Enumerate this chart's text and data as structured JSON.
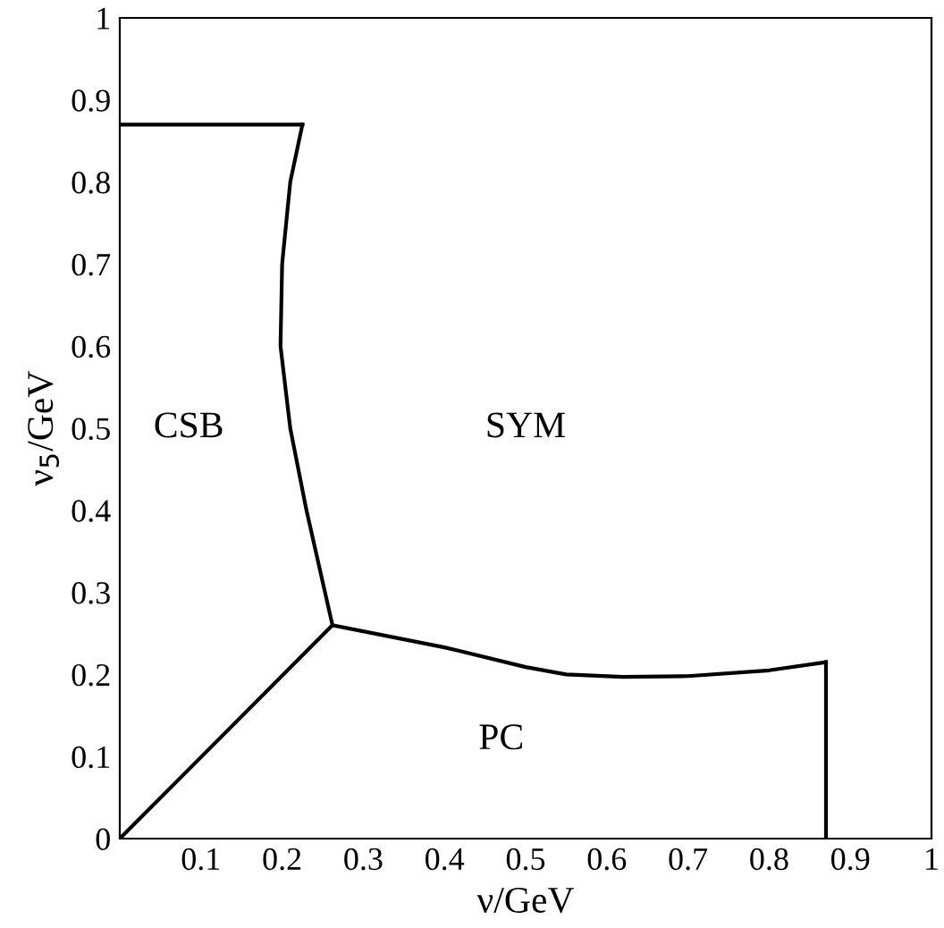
{
  "chart_data": {
    "type": "line",
    "xlabel": "ν/GeV",
    "ylabel": "ν$_{5}$/GeV",
    "xlim": [
      0,
      1
    ],
    "ylim": [
      0,
      1
    ],
    "xticks": [
      0.1,
      0.2,
      0.3,
      0.4,
      0.5,
      0.6,
      0.7,
      0.8,
      0.9,
      1
    ],
    "yticks": [
      0,
      0.1,
      0.2,
      0.3,
      0.4,
      0.5,
      0.6,
      0.7,
      0.8,
      0.9,
      1
    ],
    "grid": false,
    "marker": "none",
    "line_style": "solid",
    "series": [
      {
        "color": "#000000",
        "x": [
          0,
          0.225
        ],
        "values": [
          0.87,
          0.87
        ]
      },
      {
        "color": "#000000",
        "x": [
          0.225,
          0.21,
          0.2,
          0.198,
          0.21,
          0.23,
          0.262
        ],
        "values": [
          0.87,
          0.8,
          0.7,
          0.6,
          0.5,
          0.4,
          0.26
        ]
      },
      {
        "color": "#000000",
        "x": [
          0,
          0.262
        ],
        "values": [
          0,
          0.26
        ]
      },
      {
        "color": "#000000",
        "x": [
          0.262,
          0.4,
          0.5,
          0.55,
          0.62,
          0.7,
          0.8,
          0.87
        ],
        "values": [
          0.26,
          0.233,
          0.209,
          0.2,
          0.197,
          0.198,
          0.205,
          0.215
        ]
      },
      {
        "color": "#000000",
        "x": [
          0.87,
          0.87
        ],
        "values": [
          0.215,
          0
        ]
      }
    ],
    "annotations": [
      "CSB",
      "SYM",
      "PC"
    ]
  }
}
